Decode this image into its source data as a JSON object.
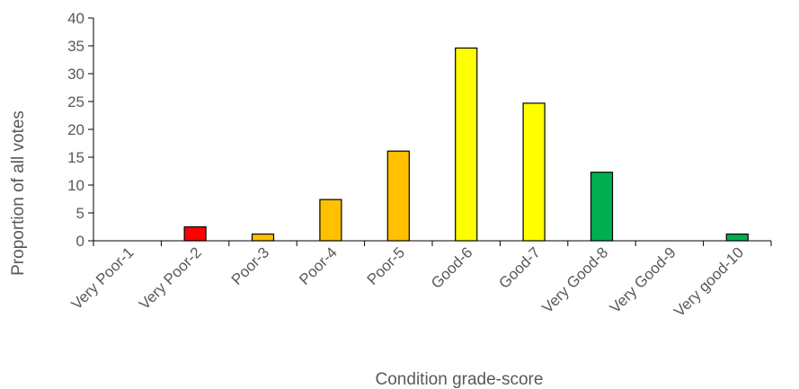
{
  "chart_data": {
    "type": "bar",
    "title": "",
    "xlabel": "Condition grade-score",
    "ylabel": "Proportion of all votes",
    "ylim": [
      0,
      40
    ],
    "yticks": [
      0,
      5,
      10,
      15,
      20,
      25,
      30,
      35,
      40
    ],
    "grid": false,
    "legend": "none",
    "categories": [
      "Very Poor-1",
      "Very Poor-2",
      "Poor-3",
      "Poor-4",
      "Poor-5",
      "Good-6",
      "Good-7",
      "Very Good-8",
      "Very Good-9",
      "Very good-10"
    ],
    "values": [
      0,
      2.5,
      1.2,
      7.4,
      16.1,
      34.6,
      24.7,
      12.3,
      0,
      1.2
    ],
    "bar_colors": [
      "#ff0000",
      "#ff0000",
      "#ffc000",
      "#ffc000",
      "#ffc000",
      "#ffff00",
      "#ffff00",
      "#00b050",
      "#00b050",
      "#00b050"
    ],
    "bar_outline_color": "#000000",
    "axis_color": "#000000",
    "text_color": "#595959"
  }
}
